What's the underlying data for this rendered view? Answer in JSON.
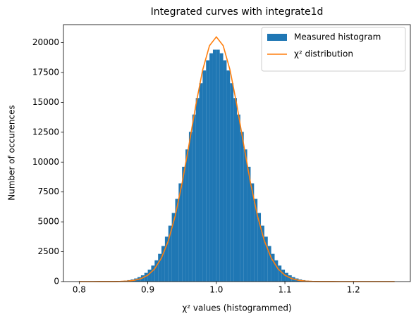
{
  "chart_data": {
    "type": "histogram",
    "title": "Integrated curves with integrate1d",
    "xlabel": "χ² values (histogrammed)",
    "ylabel": "Number of occurences",
    "xlim": [
      0.777,
      1.283
    ],
    "ylim": [
      0,
      21504
    ],
    "xticks": [
      0.8,
      0.9,
      {
        "value": 1,
        "label": "1.0"
      },
      1.1,
      1.2
    ],
    "yticks": [
      0,
      2500,
      5000,
      7500,
      10000,
      12500,
      15000,
      17500,
      20000
    ],
    "legend": "upper right",
    "series": [
      {
        "name": "Measured histogram",
        "type": "histogram",
        "color": "#1f77b4",
        "bins": [
          0.8,
          0.805,
          0.81,
          0.815,
          0.82,
          0.825,
          0.83,
          0.835,
          0.84,
          0.845,
          0.85,
          0.855,
          0.86,
          0.865,
          0.87,
          0.875,
          0.88,
          0.885,
          0.89,
          0.895,
          0.9,
          0.905,
          0.91,
          0.915,
          0.92,
          0.925,
          0.93,
          0.935,
          0.94,
          0.945,
          0.95,
          0.955,
          0.96,
          0.965,
          0.97,
          0.975,
          0.98,
          0.985,
          0.99,
          0.995,
          1.0,
          1.005,
          1.01,
          1.015,
          1.02,
          1.025,
          1.03,
          1.035,
          1.04,
          1.045,
          1.05,
          1.055,
          1.06,
          1.065,
          1.07,
          1.075,
          1.08,
          1.085,
          1.09,
          1.095,
          1.1,
          1.105,
          1.11,
          1.115,
          1.12,
          1.125,
          1.13,
          1.135,
          1.14,
          1.145,
          1.15,
          1.155,
          1.16,
          1.165,
          1.17,
          1.175,
          1.18,
          1.185,
          1.19,
          1.195,
          1.2,
          1.205,
          1.21,
          1.215,
          1.22,
          1.225,
          1.23,
          1.235,
          1.24,
          1.245,
          1.25,
          1.255,
          1.26
        ],
        "values": [
          0,
          0,
          0,
          0,
          1,
          2,
          3,
          5,
          8,
          14,
          21,
          34,
          53,
          80,
          121,
          179,
          261,
          373,
          525,
          730,
          1000,
          1340,
          1780,
          2320,
          2980,
          3760,
          4680,
          5740,
          6920,
          8220,
          9610,
          11060,
          12530,
          13980,
          15360,
          16600,
          17670,
          18520,
          19110,
          19410,
          19410,
          19110,
          18520,
          17670,
          16600,
          15360,
          13980,
          12530,
          11060,
          9610,
          8220,
          6920,
          5740,
          4680,
          3760,
          2980,
          2320,
          1780,
          1340,
          1000,
          730,
          525,
          373,
          261,
          179,
          121,
          80,
          53,
          34,
          21,
          14,
          8,
          5,
          3,
          2,
          1,
          0,
          0,
          0,
          0,
          0,
          0,
          0,
          0,
          0,
          0,
          0,
          0,
          0,
          0,
          0,
          0
        ]
      },
      {
        "name": "χ² distribution",
        "type": "line",
        "color": "#ff7f0e",
        "x": [
          0.8,
          0.81,
          0.82,
          0.83,
          0.84,
          0.85,
          0.86,
          0.87,
          0.88,
          0.89,
          0.9,
          0.91,
          0.92,
          0.93,
          0.94,
          0.95,
          0.96,
          0.97,
          0.98,
          0.99,
          1.0,
          1.01,
          1.02,
          1.03,
          1.04,
          1.05,
          1.06,
          1.07,
          1.08,
          1.09,
          1.1,
          1.11,
          1.12,
          1.13,
          1.14,
          1.15,
          1.16,
          1.17,
          1.18,
          1.19,
          1.2,
          1.21,
          1.22,
          1.23,
          1.24,
          1.25,
          1.26
        ],
        "values": [
          0,
          0,
          0,
          1,
          2,
          6,
          16,
          43,
          106,
          247,
          531,
          1063,
          1978,
          3420,
          5499,
          8219,
          11416,
          14743,
          17697,
          19745,
          20480,
          19745,
          17697,
          14743,
          11416,
          8219,
          5499,
          3420,
          1978,
          1063,
          531,
          247,
          106,
          43,
          16,
          6,
          2,
          1,
          0,
          0,
          0,
          0,
          0,
          0,
          0,
          0,
          0
        ]
      }
    ]
  }
}
